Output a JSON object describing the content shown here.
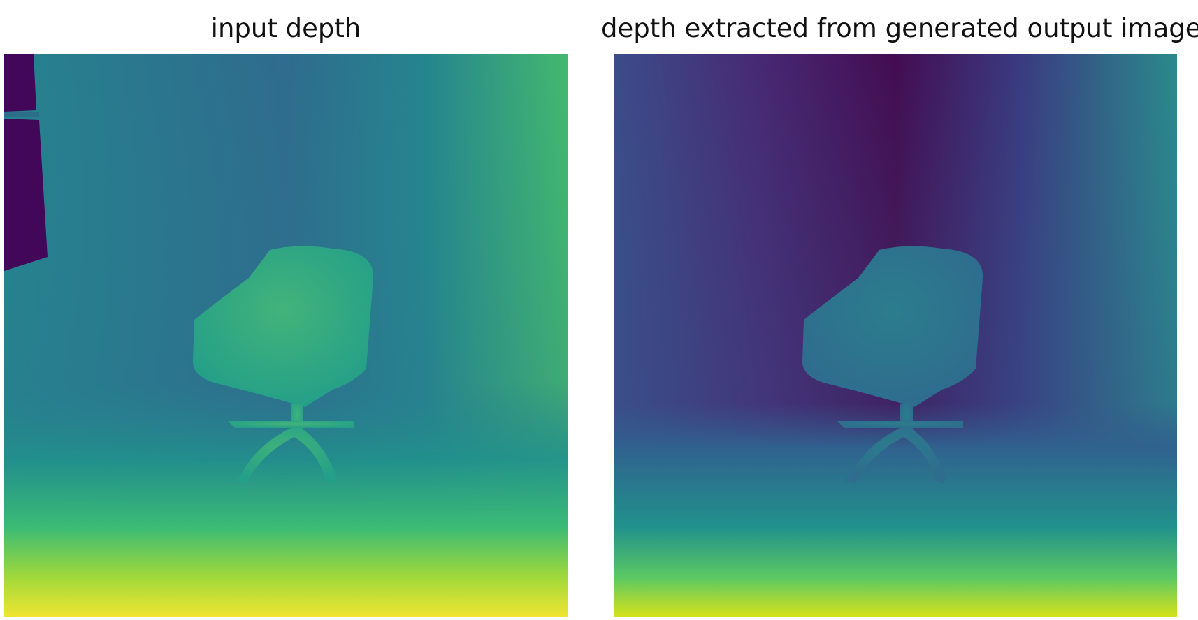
{
  "figure": {
    "panels": [
      {
        "id": "input",
        "title": "input depth",
        "colormap": "viridis"
      },
      {
        "id": "output",
        "title": "depth extracted from generated output image",
        "colormap": "viridis"
      }
    ]
  },
  "colors": {
    "viridis_dark": "#440154",
    "viridis_indigo": "#3b2f6b",
    "viridis_blue": "#31688e",
    "viridis_teal": "#21918c",
    "viridis_green": "#35b779",
    "viridis_lime": "#8fd744",
    "viridis_yellow": "#fde725"
  }
}
